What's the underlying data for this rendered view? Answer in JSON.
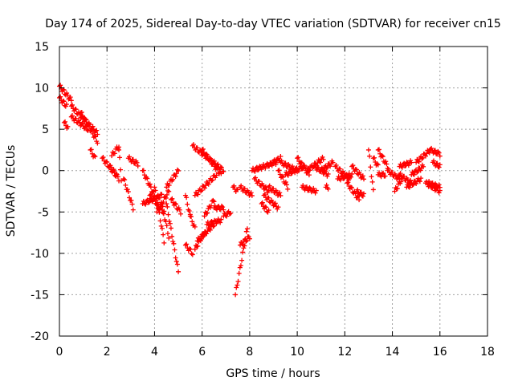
{
  "chart_data": {
    "type": "scatter",
    "title": "Day 174 of 2025, Sidereal Day-to-day VTEC variation (SDTVAR) for receiver cn15",
    "xlabel": "GPS time / hours",
    "ylabel": "SDTVAR / TECUs",
    "xlim": [
      0,
      18
    ],
    "ylim": [
      -20,
      15
    ],
    "xticks": [
      "0",
      "2",
      "4",
      "6",
      "8",
      "10",
      "12",
      "14",
      "16",
      "18"
    ],
    "yticks": [
      "-20",
      "-15",
      "-10",
      "-5",
      "0",
      "5",
      "10",
      "15"
    ],
    "grid": true,
    "marker": "+",
    "color": "#ff0000",
    "arcs": [
      {
        "x": [
          0.0,
          0.5
        ],
        "y": [
          10.2,
          8.5
        ]
      },
      {
        "x": [
          0.0,
          0.3
        ],
        "y": [
          8.8,
          7.8
        ]
      },
      {
        "x": [
          0.2,
          0.35
        ],
        "y": [
          5.8,
          5.2
        ]
      },
      {
        "x": [
          0.5,
          1.6
        ],
        "y": [
          7.8,
          4.5
        ]
      },
      {
        "x": [
          0.5,
          1.2
        ],
        "y": [
          6.5,
          5.0
        ]
      },
      {
        "x": [
          0.9,
          1.6
        ],
        "y": [
          7.0,
          3.5
        ]
      },
      {
        "x": [
          1.3,
          1.5
        ],
        "y": [
          2.5,
          1.5
        ]
      },
      {
        "x": [
          1.8,
          2.4
        ],
        "y": [
          1.5,
          -0.5
        ]
      },
      {
        "x": [
          2.1,
          2.5
        ],
        "y": [
          0.5,
          -1.0
        ]
      },
      {
        "x": [
          2.2,
          2.5
        ],
        "y": [
          1.8,
          3.0
        ]
      },
      {
        "x": [
          2.5,
          2.6
        ],
        "y": [
          2.5,
          -1.0
        ]
      },
      {
        "x": [
          2.7,
          3.1
        ],
        "y": [
          -1.0,
          -4.5
        ]
      },
      {
        "x": [
          2.9,
          3.3
        ],
        "y": [
          1.5,
          0.8
        ]
      },
      {
        "x": [
          3.5,
          4.0
        ],
        "y": [
          0.0,
          -3.0
        ]
      },
      {
        "x": [
          3.5,
          4.3
        ],
        "y": [
          -4.0,
          -3.0
        ]
      },
      {
        "x": [
          3.8,
          4.4
        ],
        "y": [
          -3.0,
          -5.0
        ]
      },
      {
        "x": [
          4.0,
          4.4
        ],
        "y": [
          -2.0,
          -8.5
        ]
      },
      {
        "x": [
          4.1,
          4.6
        ],
        "y": [
          -5.0,
          -2.5
        ]
      },
      {
        "x": [
          4.3,
          4.6
        ],
        "y": [
          -4.0,
          -8.0
        ]
      },
      {
        "x": [
          4.5,
          5.0
        ],
        "y": [
          -4.0,
          -12.2
        ]
      },
      {
        "x": [
          4.5,
          5.0
        ],
        "y": [
          -2.0,
          0.0
        ]
      },
      {
        "x": [
          4.7,
          5.1
        ],
        "y": [
          -3.5,
          -5.0
        ]
      },
      {
        "x": [
          5.3,
          5.5
        ],
        "y": [
          -3.0,
          -5.5
        ]
      },
      {
        "x": [
          5.3,
          5.6
        ],
        "y": [
          -9.0,
          -10.0
        ]
      },
      {
        "x": [
          5.5,
          5.7
        ],
        "y": [
          -5.5,
          -7.0
        ]
      },
      {
        "x": [
          5.7,
          6.1
        ],
        "y": [
          -9.5,
          -7.5
        ]
      },
      {
        "x": [
          5.7,
          6.6
        ],
        "y": [
          -3.0,
          -0.5
        ]
      },
      {
        "x": [
          5.8,
          6.5
        ],
        "y": [
          -8.5,
          -6.5
        ]
      },
      {
        "x": [
          6.1,
          6.5
        ],
        "y": [
          -5.5,
          -3.5
        ]
      },
      {
        "x": [
          5.6,
          6.9
        ],
        "y": [
          3.0,
          0.0
        ]
      },
      {
        "x": [
          6.0,
          6.8
        ],
        "y": [
          2.5,
          -0.5
        ]
      },
      {
        "x": [
          6.5,
          6.9
        ],
        "y": [
          -4.5,
          -4.5
        ]
      },
      {
        "x": [
          6.9,
          7.2
        ],
        "y": [
          -5.5,
          -5.0
        ]
      },
      {
        "x": [
          6.2,
          6.8
        ],
        "y": [
          -6.5,
          -6.0
        ]
      },
      {
        "x": [
          7.3,
          7.5
        ],
        "y": [
          -2.0,
          -2.5
        ]
      },
      {
        "x": [
          7.4,
          7.9
        ],
        "y": [
          -15.0,
          -7.0
        ]
      },
      {
        "x": [
          7.6,
          8.0
        ],
        "y": [
          -9.0,
          -8.0
        ]
      },
      {
        "x": [
          7.6,
          8.1
        ],
        "y": [
          -2.0,
          -3.0
        ]
      },
      {
        "x": [
          8.2,
          8.8
        ],
        "y": [
          -1.0,
          -2.5
        ]
      },
      {
        "x": [
          8.1,
          9.1
        ],
        "y": [
          0.0,
          1.0
        ]
      },
      {
        "x": [
          8.5,
          8.8
        ],
        "y": [
          -4.0,
          -5.0
        ]
      },
      {
        "x": [
          8.6,
          9.2
        ],
        "y": [
          -3.0,
          -4.5
        ]
      },
      {
        "x": [
          8.8,
          9.3
        ],
        "y": [
          -2.0,
          -3.0
        ]
      },
      {
        "x": [
          9.0,
          9.3
        ],
        "y": [
          1.0,
          1.5
        ]
      },
      {
        "x": [
          9.2,
          9.6
        ],
        "y": [
          0.0,
          -2.0
        ]
      },
      {
        "x": [
          9.3,
          10.0
        ],
        "y": [
          1.0,
          0.0
        ]
      },
      {
        "x": [
          9.5,
          10.3
        ],
        "y": [
          -0.5,
          0.5
        ]
      },
      {
        "x": [
          10.0,
          10.5
        ],
        "y": [
          1.5,
          -0.5
        ]
      },
      {
        "x": [
          10.2,
          10.8
        ],
        "y": [
          -2.0,
          -2.5
        ]
      },
      {
        "x": [
          10.4,
          11.1
        ],
        "y": [
          0.0,
          1.5
        ]
      },
      {
        "x": [
          10.7,
          11.3
        ],
        "y": [
          0.5,
          -0.5
        ]
      },
      {
        "x": [
          11.0,
          11.5
        ],
        "y": [
          0.0,
          1.0
        ]
      },
      {
        "x": [
          11.2,
          11.3
        ],
        "y": [
          -2.0,
          -2.0
        ]
      },
      {
        "x": [
          11.6,
          12.2
        ],
        "y": [
          0.5,
          -1.0
        ]
      },
      {
        "x": [
          11.7,
          12.3
        ],
        "y": [
          -1.0,
          -0.5
        ]
      },
      {
        "x": [
          12.1,
          12.6
        ],
        "y": [
          -1.5,
          -3.5
        ]
      },
      {
        "x": [
          12.3,
          12.8
        ],
        "y": [
          0.5,
          -1.0
        ]
      },
      {
        "x": [
          12.5,
          12.8
        ],
        "y": [
          -2.5,
          -3.0
        ]
      },
      {
        "x": [
          13.0,
          13.2
        ],
        "y": [
          2.5,
          -2.5
        ]
      },
      {
        "x": [
          13.2,
          13.4
        ],
        "y": [
          1.5,
          0.5
        ]
      },
      {
        "x": [
          13.4,
          13.8
        ],
        "y": [
          2.5,
          0.5
        ]
      },
      {
        "x": [
          13.4,
          13.7
        ],
        "y": [
          -0.5,
          -0.5
        ]
      },
      {
        "x": [
          13.8,
          14.3
        ],
        "y": [
          0.0,
          -1.0
        ]
      },
      {
        "x": [
          14.1,
          14.4
        ],
        "y": [
          -2.5,
          -1.0
        ]
      },
      {
        "x": [
          14.3,
          14.8
        ],
        "y": [
          -0.5,
          -1.5
        ]
      },
      {
        "x": [
          14.6,
          15.2
        ],
        "y": [
          -2.0,
          -1.0
        ]
      },
      {
        "x": [
          14.3,
          14.8
        ],
        "y": [
          0.5,
          1.0
        ]
      },
      {
        "x": [
          14.8,
          15.3
        ],
        "y": [
          -0.5,
          0.5
        ]
      },
      {
        "x": [
          15.0,
          15.6
        ],
        "y": [
          1.0,
          2.5
        ]
      },
      {
        "x": [
          15.4,
          16.0
        ],
        "y": [
          -1.5,
          -2.5
        ]
      },
      {
        "x": [
          15.5,
          16.0
        ],
        "y": [
          -1.5,
          -2.0
        ]
      },
      {
        "x": [
          15.6,
          16.0
        ],
        "y": [
          2.5,
          2.0
        ]
      },
      {
        "x": [
          15.7,
          16.0
        ],
        "y": [
          1.0,
          0.5
        ]
      }
    ]
  }
}
